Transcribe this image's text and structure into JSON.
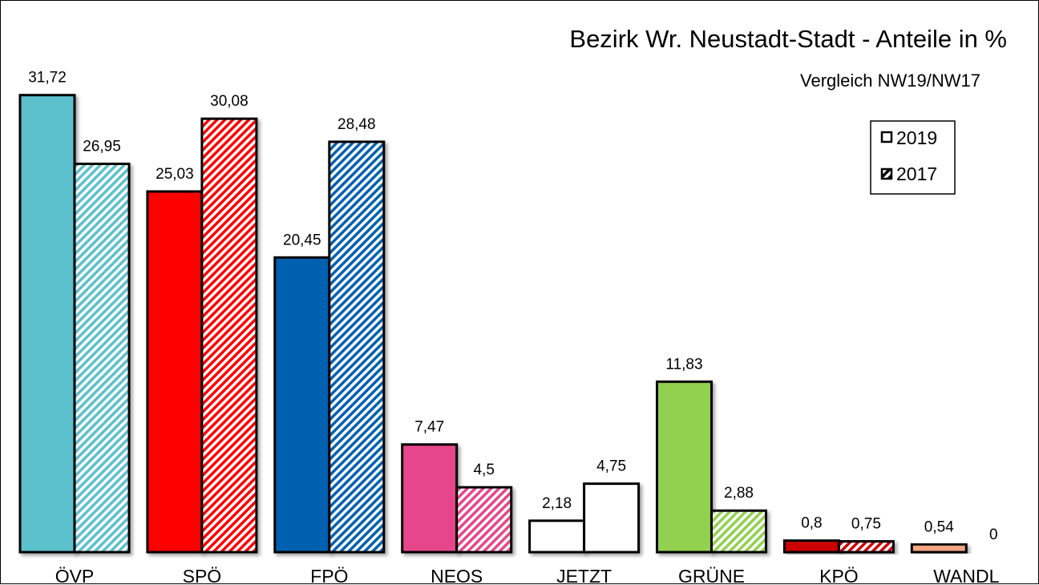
{
  "chart_data": {
    "type": "bar",
    "title": "Bezirk Wr. Neustadt-Stadt - Anteile in %",
    "subtitle": "Vergleich NW19/NW17",
    "categories": [
      "ÖVP",
      "SPÖ",
      "FPÖ",
      "NEOS",
      "JETZT",
      "GRÜNE",
      "KPÖ",
      "WANDL"
    ],
    "series": [
      {
        "name": "2019",
        "values": [
          31.72,
          25.03,
          20.45,
          7.47,
          2.18,
          11.83,
          0.8,
          0.54
        ],
        "labels": [
          "31,72",
          "25,03",
          "20,45",
          "7,47",
          "2,18",
          "11,83",
          "0,8",
          "0,54"
        ]
      },
      {
        "name": "2017",
        "values": [
          26.95,
          30.08,
          28.48,
          4.5,
          4.75,
          2.88,
          0.75,
          0
        ],
        "labels": [
          "26,95",
          "30,08",
          "28,48",
          "4,5",
          "4,75",
          "2,88",
          "0,75",
          "0"
        ]
      }
    ],
    "colors": [
      "#5bc0cd",
      "#ff0000",
      "#0061b0",
      "#e5468a",
      "#ffffff",
      "#92d050",
      "#cc0000",
      "#f4a582"
    ],
    "pattern_2017": "diagonal-hatch",
    "ylim": [
      0,
      32
    ],
    "xlabel": "",
    "ylabel": "",
    "grid": false,
    "legend_position": "top-right"
  }
}
